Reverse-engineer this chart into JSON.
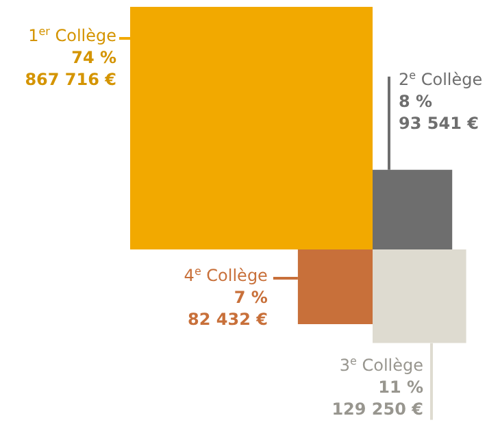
{
  "chart_data": {
    "type": "other",
    "categories": [
      "1$^{er}$ Collège",
      "2$^{e}$ Collège",
      "3$^{e}$ Collège",
      "4$^{e}$ Collège"
    ],
    "colors": [
      "#f2a900",
      "#6e6e6e",
      "#dedbd0",
      "#c8703a"
    ],
    "series": [
      {
        "values": [
          74,
          8,
          11,
          7
        ],
        "value_labels": [
          "74 %",
          "8 %",
          "11 %",
          "7 %"
        ]
      },
      {
        "values": [
          867716,
          93541,
          129250,
          82432
        ],
        "value_labels": [
          "867 716 €",
          "93 541 €",
          "129 250 €",
          "82 432 €"
        ]
      }
    ]
  }
}
